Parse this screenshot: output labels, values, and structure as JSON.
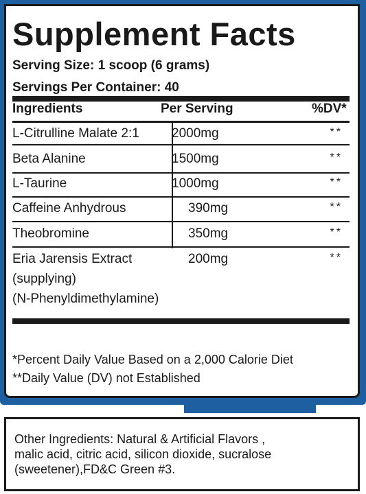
{
  "colors": {
    "frame_blue": "#1d5fa0",
    "ink": "#1a1a1a"
  },
  "label": {
    "title": "Supplement Facts",
    "serving_size": "Serving Size: 1 scoop (6 grams)",
    "servings_per_container": "Servings Per Container: 40",
    "headers": {
      "ingredients": "Ingredients",
      "per_serving": "Per Serving",
      "dv": "%DV*"
    },
    "rows": [
      {
        "name": "L-Citrulline Malate 2:1",
        "amount": "2000mg",
        "dv": "**"
      },
      {
        "name": "Beta Alanine",
        "amount": "1500mg",
        "dv": "**"
      },
      {
        "name": "L-Taurine",
        "amount": "1000mg",
        "dv": "**"
      },
      {
        "name": "Caffeine Anhydrous",
        "amount": "390mg",
        "dv": "**"
      },
      {
        "name": "Theobromine",
        "amount": "350mg",
        "dv": "**"
      },
      {
        "name": "Eria Jarensis Extract",
        "sub1": "(supplying)",
        "sub2": "(N-Phenyldimethylamine)",
        "amount": "200mg",
        "dv": "**"
      }
    ],
    "footnote1": "*Percent Daily Value Based on a 2,000 Calorie Diet",
    "footnote2": "**Daily Value (DV) not Established"
  },
  "other_ingredients": {
    "line1": "Other Ingredients: Natural & Artificial Flavors ,",
    "line2": "malic acid, citric acid, silicon dioxide, sucralose",
    "line3": "(sweetener),FD&C Green #3."
  }
}
